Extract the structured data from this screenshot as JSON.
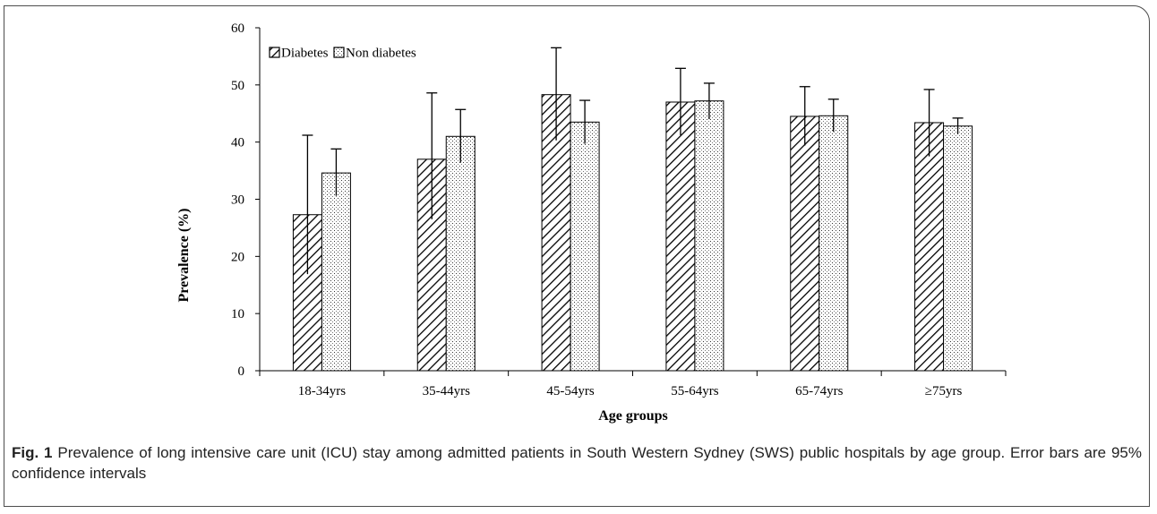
{
  "chart_data": {
    "type": "bar",
    "categories": [
      "18-34yrs",
      "35-44yrs",
      "45-54yrs",
      "55-64yrs",
      "65-74yrs",
      "≥75yrs"
    ],
    "series": [
      {
        "name": "Diabetes",
        "pattern": "diagonal-hatch",
        "values": [
          27.3,
          37.0,
          48.3,
          47.0,
          44.5,
          43.4
        ],
        "error_low": [
          16.9,
          26.5,
          40.3,
          41.2,
          39.4,
          37.5
        ],
        "error_high": [
          41.2,
          48.6,
          56.5,
          52.9,
          49.7,
          49.2
        ]
      },
      {
        "name": "Non diabetes",
        "pattern": "dotted",
        "values": [
          34.6,
          41.0,
          43.5,
          47.2,
          44.6,
          42.8
        ],
        "error_low": [
          30.6,
          36.4,
          39.7,
          44.0,
          41.8,
          41.4
        ],
        "error_high": [
          38.8,
          45.7,
          47.3,
          50.3,
          47.5,
          44.2
        ]
      }
    ],
    "ylabel": "Prevalence (%)",
    "xlabel": "Age groups",
    "ylim": [
      0,
      60
    ],
    "yticks": [
      0,
      10,
      20,
      30,
      40,
      50,
      60
    ],
    "grid": false,
    "legend_position": "top-left"
  },
  "caption": {
    "label": "Fig. 1",
    "text": " Prevalence of long intensive care unit (ICU) stay among admitted patients in South Western Sydney (SWS) public hospitals by age group. Error bars are 95% confidence intervals"
  }
}
